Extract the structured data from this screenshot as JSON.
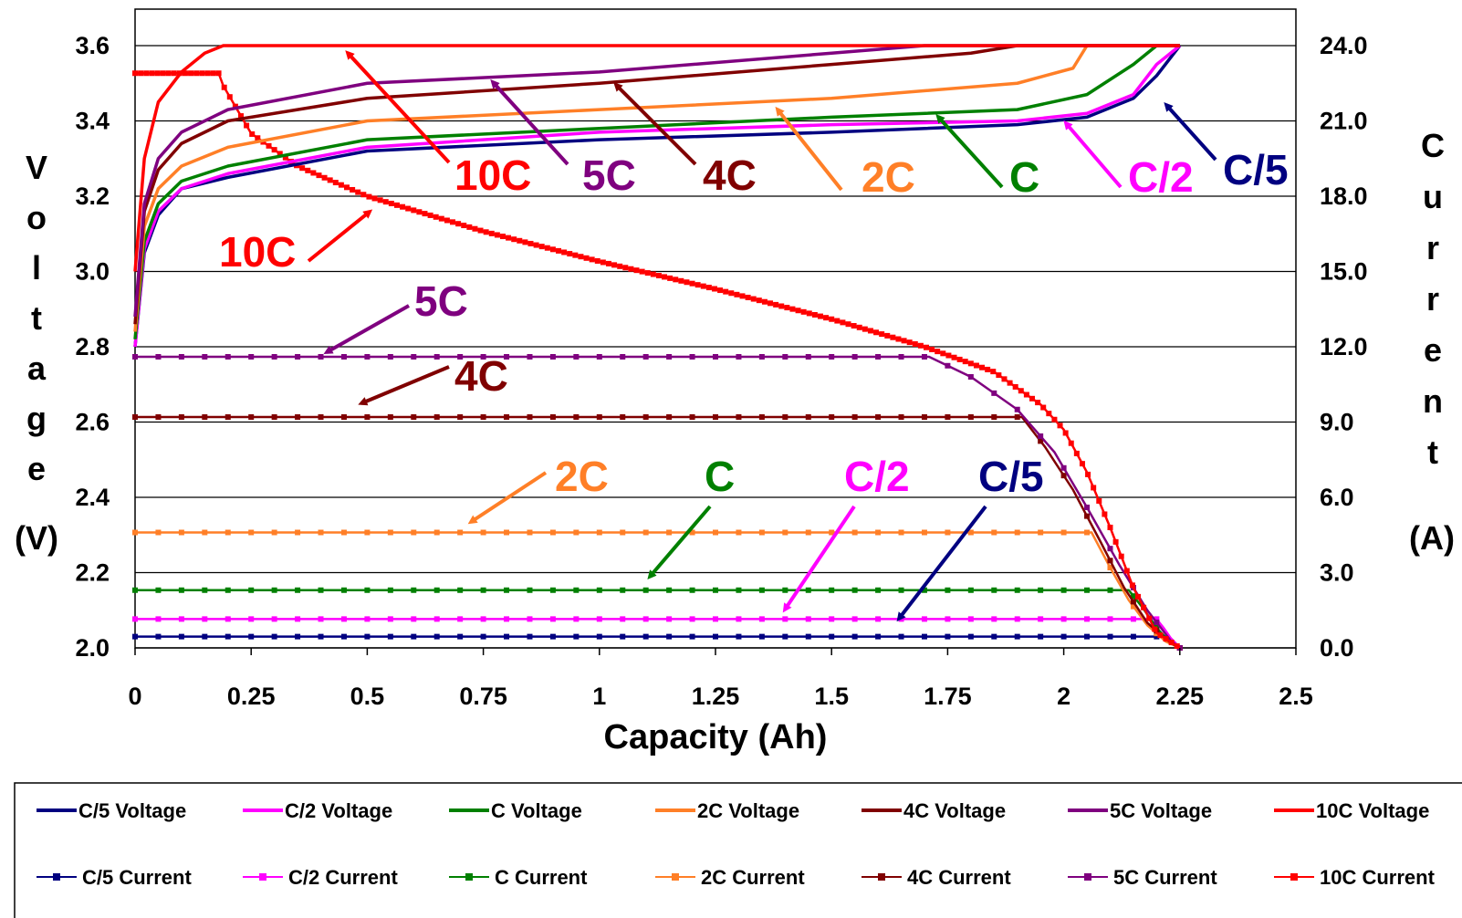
{
  "chart_data": {
    "type": "line",
    "xlabel": "Capacity (Ah)",
    "ylabel_left_letters": [
      "V",
      "o",
      "l",
      "t",
      "a",
      "g",
      "e"
    ],
    "ylabel_left_unit": "(V)",
    "ylabel_right_letters": [
      "C",
      "u",
      "r",
      "r",
      "e",
      "n",
      "t"
    ],
    "ylabel_right_unit": "(A)",
    "xlim": [
      0,
      2.5
    ],
    "ylim_left": [
      2.0,
      3.6
    ],
    "ylim_right": [
      0,
      24
    ],
    "x_ticks": [
      "0",
      "0.25",
      "0.5",
      "0.75",
      "1",
      "1.25",
      "1.5",
      "1.75",
      "2",
      "2.25",
      "2.5"
    ],
    "y_left_ticks": [
      "2.0",
      "2.2",
      "2.4",
      "2.6",
      "2.8",
      "3.0",
      "3.2",
      "3.4",
      "3.6"
    ],
    "y_right_ticks": [
      "0.0",
      "3.0",
      "6.0",
      "9.0",
      "12.0",
      "15.0",
      "18.0",
      "21.0",
      "24.0"
    ],
    "grid": "horizontal",
    "legend_position": "bottom",
    "voltage_series": [
      {
        "name": "C/5 Voltage",
        "color": "#000080",
        "x": [
          0,
          0.02,
          0.05,
          0.1,
          0.2,
          0.5,
          1.0,
          1.5,
          1.9,
          2.05,
          2.15,
          2.2,
          2.25
        ],
        "y": [
          2.8,
          3.05,
          3.15,
          3.22,
          3.25,
          3.32,
          3.35,
          3.37,
          3.39,
          3.41,
          3.46,
          3.52,
          3.6
        ]
      },
      {
        "name": "C/2 Voltage",
        "color": "#ff00ff",
        "x": [
          0,
          0.02,
          0.05,
          0.1,
          0.2,
          0.5,
          1.0,
          1.5,
          1.9,
          2.05,
          2.15,
          2.2,
          2.25
        ],
        "y": [
          2.8,
          3.06,
          3.16,
          3.22,
          3.26,
          3.33,
          3.37,
          3.39,
          3.4,
          3.42,
          3.47,
          3.55,
          3.6
        ]
      },
      {
        "name": "C Voltage",
        "color": "#008000",
        "x": [
          0,
          0.02,
          0.05,
          0.1,
          0.2,
          0.5,
          1.0,
          1.5,
          1.9,
          2.05,
          2.15,
          2.2,
          2.25
        ],
        "y": [
          2.82,
          3.08,
          3.18,
          3.24,
          3.28,
          3.35,
          3.38,
          3.41,
          3.43,
          3.47,
          3.55,
          3.6,
          3.6
        ]
      },
      {
        "name": "2C Voltage",
        "color": "#ff7f27",
        "x": [
          0,
          0.02,
          0.05,
          0.1,
          0.2,
          0.5,
          1.0,
          1.5,
          1.9,
          2.02,
          2.05,
          2.25
        ],
        "y": [
          2.84,
          3.12,
          3.22,
          3.28,
          3.33,
          3.4,
          3.43,
          3.46,
          3.5,
          3.54,
          3.6,
          3.6
        ]
      },
      {
        "name": "4C Voltage",
        "color": "#800000",
        "x": [
          0,
          0.02,
          0.05,
          0.1,
          0.2,
          0.5,
          1.0,
          1.5,
          1.8,
          1.9,
          2.25
        ],
        "y": [
          2.86,
          3.16,
          3.27,
          3.34,
          3.4,
          3.46,
          3.5,
          3.55,
          3.58,
          3.6,
          3.6
        ]
      },
      {
        "name": "5C Voltage",
        "color": "#7f007f",
        "x": [
          0,
          0.02,
          0.05,
          0.1,
          0.2,
          0.5,
          1.0,
          1.5,
          1.7,
          2.25
        ],
        "y": [
          2.88,
          3.18,
          3.3,
          3.37,
          3.43,
          3.5,
          3.53,
          3.58,
          3.6,
          3.6
        ]
      },
      {
        "name": "10C Voltage",
        "color": "#ff0000",
        "x": [
          0,
          0.02,
          0.05,
          0.1,
          0.15,
          0.19,
          2.25
        ],
        "y": [
          3.0,
          3.3,
          3.45,
          3.53,
          3.58,
          3.6,
          3.6
        ]
      }
    ],
    "current_series": [
      {
        "name": "C/5 Current",
        "color": "#000080",
        "x": [
          0,
          2.225,
          2.235,
          2.245,
          2.25
        ],
        "y": [
          0.45,
          0.45,
          0.3,
          0.1,
          0
        ]
      },
      {
        "name": "C/2 Current",
        "color": "#ff00ff",
        "x": [
          0,
          2.2,
          2.215,
          2.23,
          2.245,
          2.25
        ],
        "y": [
          1.15,
          1.15,
          0.8,
          0.4,
          0.1,
          0
        ]
      },
      {
        "name": "C Current",
        "color": "#008000",
        "x": [
          0,
          2.14,
          2.17,
          2.2,
          2.23,
          2.25
        ],
        "y": [
          2.3,
          2.3,
          1.6,
          0.8,
          0.2,
          0
        ]
      },
      {
        "name": "2C Current",
        "color": "#ff7f27",
        "x": [
          0,
          2.06,
          2.1,
          2.14,
          2.18,
          2.22,
          2.25
        ],
        "y": [
          4.6,
          4.6,
          3.2,
          1.9,
          0.9,
          0.25,
          0
        ]
      },
      {
        "name": "4C Current",
        "color": "#800000",
        "x": [
          0,
          1.91,
          1.96,
          2.02,
          2.08,
          2.13,
          2.18,
          2.23,
          2.25
        ],
        "y": [
          9.2,
          9.2,
          8.0,
          6.3,
          4.2,
          2.4,
          1.0,
          0.2,
          0
        ]
      },
      {
        "name": "5C Current",
        "color": "#7f007f",
        "x": [
          0,
          1.71,
          1.8,
          1.9,
          1.98,
          2.05,
          2.12,
          2.18,
          2.23,
          2.25
        ],
        "y": [
          11.6,
          11.6,
          10.8,
          9.5,
          7.8,
          5.6,
          3.3,
          1.5,
          0.3,
          0
        ]
      },
      {
        "name": "10C Current",
        "color": "#ff0000",
        "x": [
          0,
          0.18,
          0.19,
          0.25,
          0.35,
          0.5,
          0.75,
          1.0,
          1.25,
          1.5,
          1.7,
          1.85,
          1.95,
          2.0,
          2.05,
          2.1,
          2.15,
          2.2,
          2.25
        ],
        "y": [
          22.9,
          22.9,
          22.4,
          20.5,
          19.2,
          18.0,
          16.6,
          15.4,
          14.3,
          13.1,
          12.0,
          11.0,
          9.7,
          8.7,
          7.0,
          4.8,
          2.4,
          0.6,
          0
        ]
      }
    ],
    "annotations_top": [
      {
        "text": "10C",
        "color": "#ff0000"
      },
      {
        "text": "5C",
        "color": "#7f007f"
      },
      {
        "text": "4C",
        "color": "#800000"
      },
      {
        "text": "2C",
        "color": "#ff7f27"
      },
      {
        "text": "C",
        "color": "#008000"
      },
      {
        "text": "C/2",
        "color": "#ff00ff"
      },
      {
        "text": "C/5",
        "color": "#000080"
      }
    ],
    "annotations_mid": [
      {
        "text": "10C",
        "color": "#ff0000"
      },
      {
        "text": "5C",
        "color": "#7f007f"
      },
      {
        "text": "4C",
        "color": "#800000"
      },
      {
        "text": "2C",
        "color": "#ff7f27"
      },
      {
        "text": "C",
        "color": "#008000"
      },
      {
        "text": "C/2",
        "color": "#ff00ff"
      },
      {
        "text": "C/5",
        "color": "#000080"
      }
    ]
  }
}
